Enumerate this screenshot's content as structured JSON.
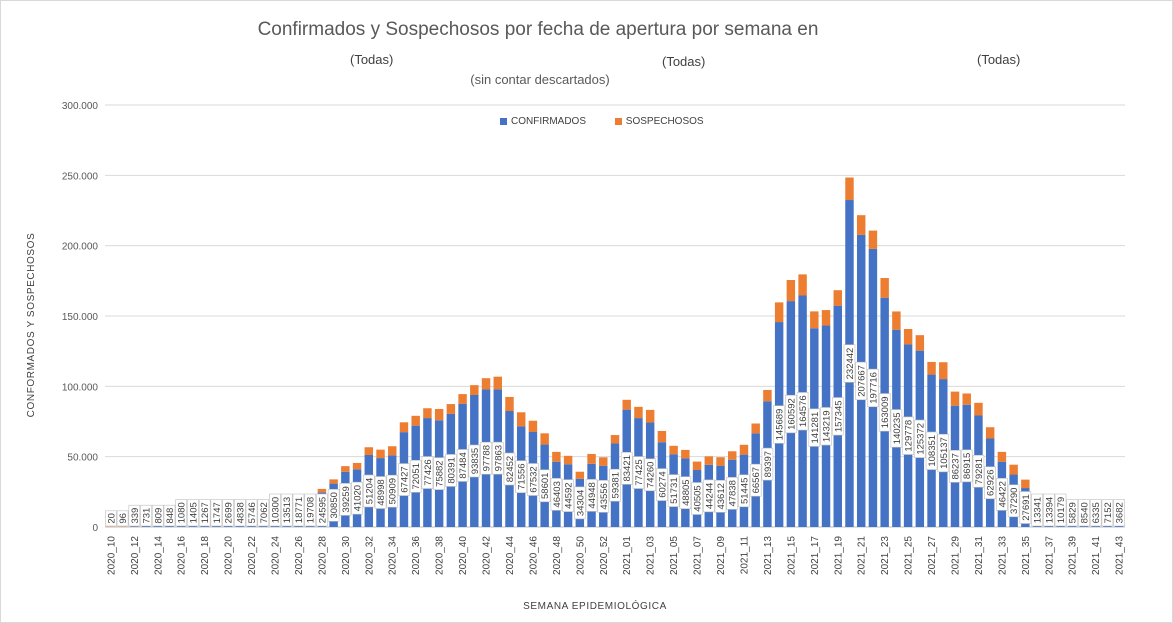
{
  "chart_data": {
    "type": "bar",
    "stacked": true,
    "title": "Confirmados y Sospechosos por fecha de apertura por semana en",
    "filters": [
      "(Todas)",
      "(Todas)",
      "(Todas)"
    ],
    "subtitle": "(sin contar descartados)",
    "xlabel": "SEMANA EPIDEMIOLÓGICA",
    "ylabel": "CONFORMADOS Y SOSPECHOSOS",
    "ylim": [
      0,
      300000
    ],
    "yticks": [
      0,
      50000,
      100000,
      150000,
      200000,
      250000,
      300000
    ],
    "ytick_labels": [
      "0",
      "50.000",
      "100.000",
      "150.000",
      "200.000",
      "250.000",
      "300.000"
    ],
    "grid": true,
    "legend_position": "top-center",
    "colors": {
      "confirmados": "#4472c4",
      "sospechosos": "#ed7d31"
    },
    "categories": [
      "2020_10",
      "2020_11",
      "2020_12",
      "2020_13",
      "2020_14",
      "2020_15",
      "2020_16",
      "2020_17",
      "2020_18",
      "2020_19",
      "2020_20",
      "2020_21",
      "2020_22",
      "2020_23",
      "2020_24",
      "2020_25",
      "2020_26",
      "2020_27",
      "2020_28",
      "2020_29",
      "2020_30",
      "2020_31",
      "2020_32",
      "2020_33",
      "2020_34",
      "2020_35",
      "2020_36",
      "2020_37",
      "2020_38",
      "2020_39",
      "2020_40",
      "2020_41",
      "2020_42",
      "2020_43",
      "2020_44",
      "2020_45",
      "2020_46",
      "2020_47",
      "2020_48",
      "2020_49",
      "2020_50",
      "2020_51",
      "2020_52",
      "2020_53",
      "2021_01",
      "2021_02",
      "2021_03",
      "2021_04",
      "2021_05",
      "2021_06",
      "2021_07",
      "2021_08",
      "2021_09",
      "2021_10",
      "2021_11",
      "2021_12",
      "2021_13",
      "2021_14",
      "2021_15",
      "2021_16",
      "2021_17",
      "2021_18",
      "2021_19",
      "2021_20",
      "2021_21",
      "2021_22",
      "2021_23",
      "2021_24",
      "2021_25",
      "2021_26",
      "2021_27",
      "2021_28",
      "2021_29",
      "2021_30",
      "2021_31",
      "2021_32",
      "2021_33",
      "2021_34",
      "2021_35",
      "2021_36",
      "2021_37",
      "2021_38",
      "2021_39",
      "2021_40",
      "2021_41",
      "2021_42",
      "2021_43"
    ],
    "tick_labels": [
      "2020_10",
      "",
      "2020_12",
      "",
      "2020_14",
      "",
      "2020_16",
      "",
      "2020_18",
      "",
      "2020_20",
      "",
      "2020_22",
      "",
      "2020_24",
      "",
      "2020_26",
      "",
      "2020_28",
      "",
      "2020_30",
      "",
      "2020_32",
      "",
      "2020_34",
      "",
      "2020_36",
      "",
      "2020_38",
      "",
      "2020_40",
      "",
      "2020_42",
      "",
      "2020_44",
      "",
      "2020_46",
      "",
      "2020_48",
      "",
      "2020_50",
      "",
      "2020_52",
      "",
      "2021_01",
      "",
      "2021_03",
      "",
      "2021_05",
      "",
      "2021_07",
      "",
      "2021_09",
      "",
      "2021_11",
      "",
      "2021_13",
      "",
      "2021_15",
      "",
      "2021_17",
      "",
      "2021_19",
      "",
      "2021_21",
      "",
      "2021_23",
      "",
      "2021_25",
      "",
      "2021_27",
      "",
      "2021_29",
      "",
      "2021_31",
      "",
      "2021_33",
      "",
      "2021_35",
      "",
      "2021_37",
      "",
      "2021_39",
      "",
      "2021_41",
      "",
      "2021_43"
    ],
    "series": [
      {
        "name": "CONFIRMADOS",
        "values": [
          20,
          96,
          339,
          731,
          809,
          848,
          1080,
          1405,
          1267,
          1747,
          2699,
          4838,
          5746,
          7062,
          10300,
          13513,
          18771,
          19708,
          24595,
          30850,
          39259,
          41020,
          51204,
          48998,
          50909,
          67427,
          72051,
          77426,
          75882,
          80391,
          87484,
          93835,
          97788,
          97863,
          82452,
          71556,
          67532,
          58601,
          46403,
          44592,
          34304,
          44948,
          43556,
          59381,
          83421,
          77425,
          74260,
          60274,
          51731,
          48805,
          40505,
          44244,
          43612,
          47838,
          51445,
          66567,
          89397,
          145689,
          160592,
          164576,
          141281,
          143219,
          157345,
          232442,
          207667,
          197716,
          163009,
          140235,
          129778,
          125372,
          108351,
          105137,
          86237,
          86915,
          79281,
          62926,
          46422,
          37290,
          27691,
          13341,
          13394,
          10179,
          5829,
          8540,
          6335,
          7152,
          3682
        ],
        "data_labels": [
          "20",
          "96",
          "339",
          "731",
          "809",
          "848",
          "1080",
          "1405",
          "1267",
          "1747",
          "2699",
          "4838",
          "5746",
          "7062",
          "10300",
          "13513",
          "18771",
          "19708",
          "24595",
          "30850",
          "39259",
          "41020",
          "51204",
          "48998",
          "50909",
          "67427",
          "72051",
          "77426",
          "75882",
          "80391",
          "87484",
          "93835",
          "97788",
          "97863",
          "82452",
          "71556",
          "67532",
          "58601",
          "46403",
          "44592",
          "34304",
          "44948",
          "43556",
          "59381",
          "83421",
          "77425",
          "74260",
          "60274",
          "51731",
          "48805",
          "40505",
          "44244",
          "43612",
          "47838",
          "51445",
          "66567",
          "89397",
          "145689",
          "160592",
          "164576",
          "141281",
          "143219",
          "157345",
          "232442",
          "207667",
          "197716",
          "163009",
          "140235",
          "129778",
          "125372",
          "108351",
          "105137",
          "86237",
          "86915",
          "79281",
          "62926",
          "46422",
          "37290",
          "27691",
          "13341",
          "13394",
          "10179",
          "5829",
          "8540",
          "6335",
          "7152",
          "3682"
        ]
      },
      {
        "name": "SOSPECHOSOS",
        "values": [
          200,
          250,
          300,
          300,
          300,
          400,
          450,
          500,
          500,
          600,
          700,
          800,
          900,
          1100,
          1300,
          1500,
          1700,
          2000,
          2500,
          3000,
          4000,
          4500,
          5500,
          6000,
          6500,
          7000,
          7000,
          7000,
          8000,
          7000,
          7000,
          7000,
          8000,
          9000,
          10000,
          10000,
          8000,
          8000,
          7000,
          6000,
          5000,
          7000,
          6000,
          6000,
          7000,
          8000,
          9000,
          8000,
          6000,
          6000,
          6000,
          6000,
          6000,
          6000,
          7000,
          7000,
          8000,
          14000,
          15000,
          15000,
          12000,
          11000,
          11000,
          16000,
          14000,
          13000,
          14000,
          13000,
          11000,
          11000,
          9000,
          12000,
          10000,
          8000,
          9000,
          8000,
          7000,
          7000,
          6000,
          5000,
          4000,
          3000,
          3000,
          3000,
          3000,
          3000,
          3000
        ]
      }
    ]
  }
}
